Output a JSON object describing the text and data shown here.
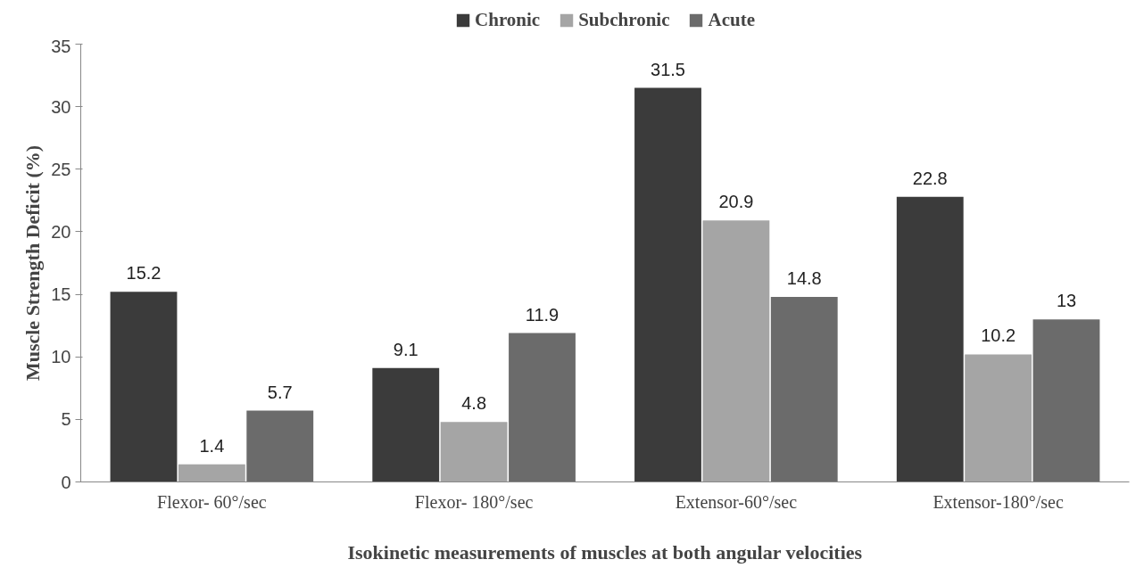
{
  "chart_data": {
    "type": "bar",
    "xlabel": "Isokinetic measurements of muscles at both angular velocities",
    "ylabel": "Muscle Strength Deficit (%)",
    "categories": [
      "Flexor- 60°/sec",
      "Flexor- 180°/sec",
      "Extensor-60°/sec",
      "Extensor-180°/sec"
    ],
    "series": [
      {
        "name": "Chronic",
        "color": "#3b3b3b",
        "values": [
          15.2,
          9.1,
          31.5,
          22.8
        ]
      },
      {
        "name": "Subchronic",
        "color": "#a5a5a5",
        "values": [
          1.4,
          4.8,
          20.9,
          10.2
        ]
      },
      {
        "name": "Acute",
        "color": "#6b6b6b",
        "values": [
          5.7,
          11.9,
          14.8,
          13
        ]
      }
    ],
    "ylim": [
      0,
      35
    ],
    "yticks": [
      0,
      5,
      10,
      15,
      20,
      25,
      30,
      35
    ],
    "data_labels": true,
    "legend": "top",
    "grid": false
  }
}
